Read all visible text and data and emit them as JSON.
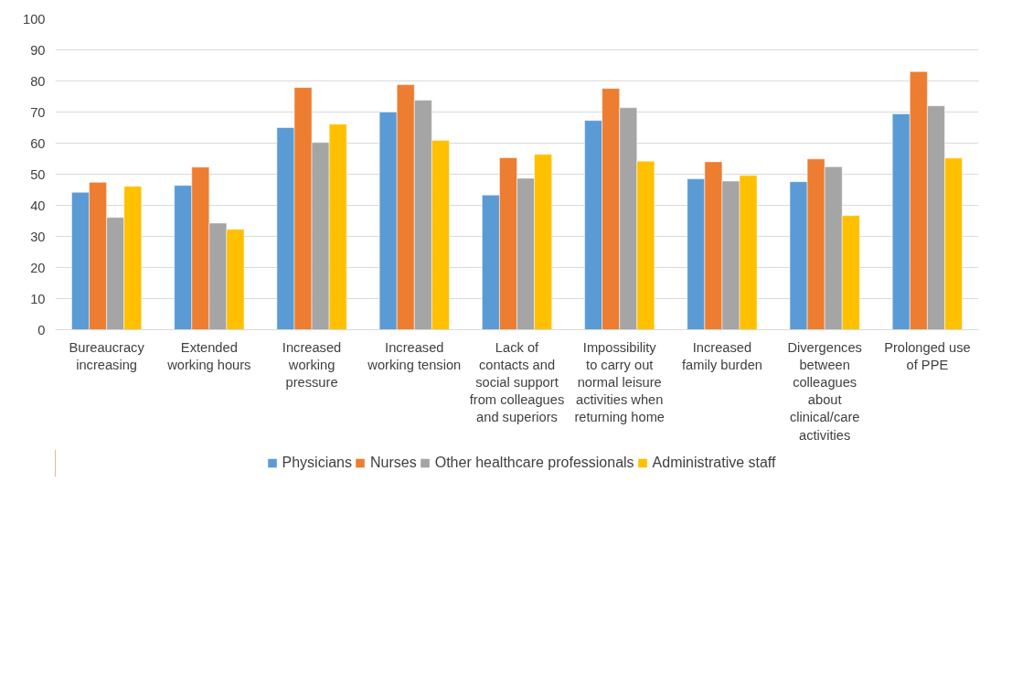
{
  "chart_data": {
    "type": "bar",
    "categories": [
      "Bureaucracy increasing",
      "Extended working hours",
      "Increased working pressure",
      "Increased working tension",
      "Lack of contacts and social support from colleagues and superiors",
      "Impossibility to carry out normal leisure activities when returning home",
      "Increased family burden",
      "Divergences between colleagues about clinical/care activities",
      "Prolonged use of PPE"
    ],
    "series": [
      {
        "name": "Physicians",
        "color": "#5b9bd5",
        "values": [
          44.2,
          46.4,
          65,
          70,
          43.3,
          67.3,
          48.5,
          47.6,
          69.4
        ]
      },
      {
        "name": "Nurses",
        "color": "#ed7d31",
        "values": [
          47.4,
          52.3,
          77.9,
          78.8,
          55.3,
          77.6,
          54,
          54.9,
          83
        ]
      },
      {
        "name": "Other healthcare professionals",
        "color": "#a5a5a5",
        "values": [
          36.1,
          34.3,
          60.2,
          73.8,
          48.7,
          71.4,
          47.8,
          52.4,
          72
        ]
      },
      {
        "name": "Administrative staff",
        "color": "#ffc000",
        "values": [
          46.1,
          32.3,
          66.1,
          60.9,
          56.4,
          54.2,
          49.6,
          36.7,
          55.2
        ]
      }
    ],
    "ylim": [
      0,
      100
    ],
    "yticks": [
      0,
      10,
      20,
      30,
      40,
      50,
      60,
      70,
      80,
      90,
      100
    ],
    "grid": "y",
    "legend": "bottom"
  }
}
